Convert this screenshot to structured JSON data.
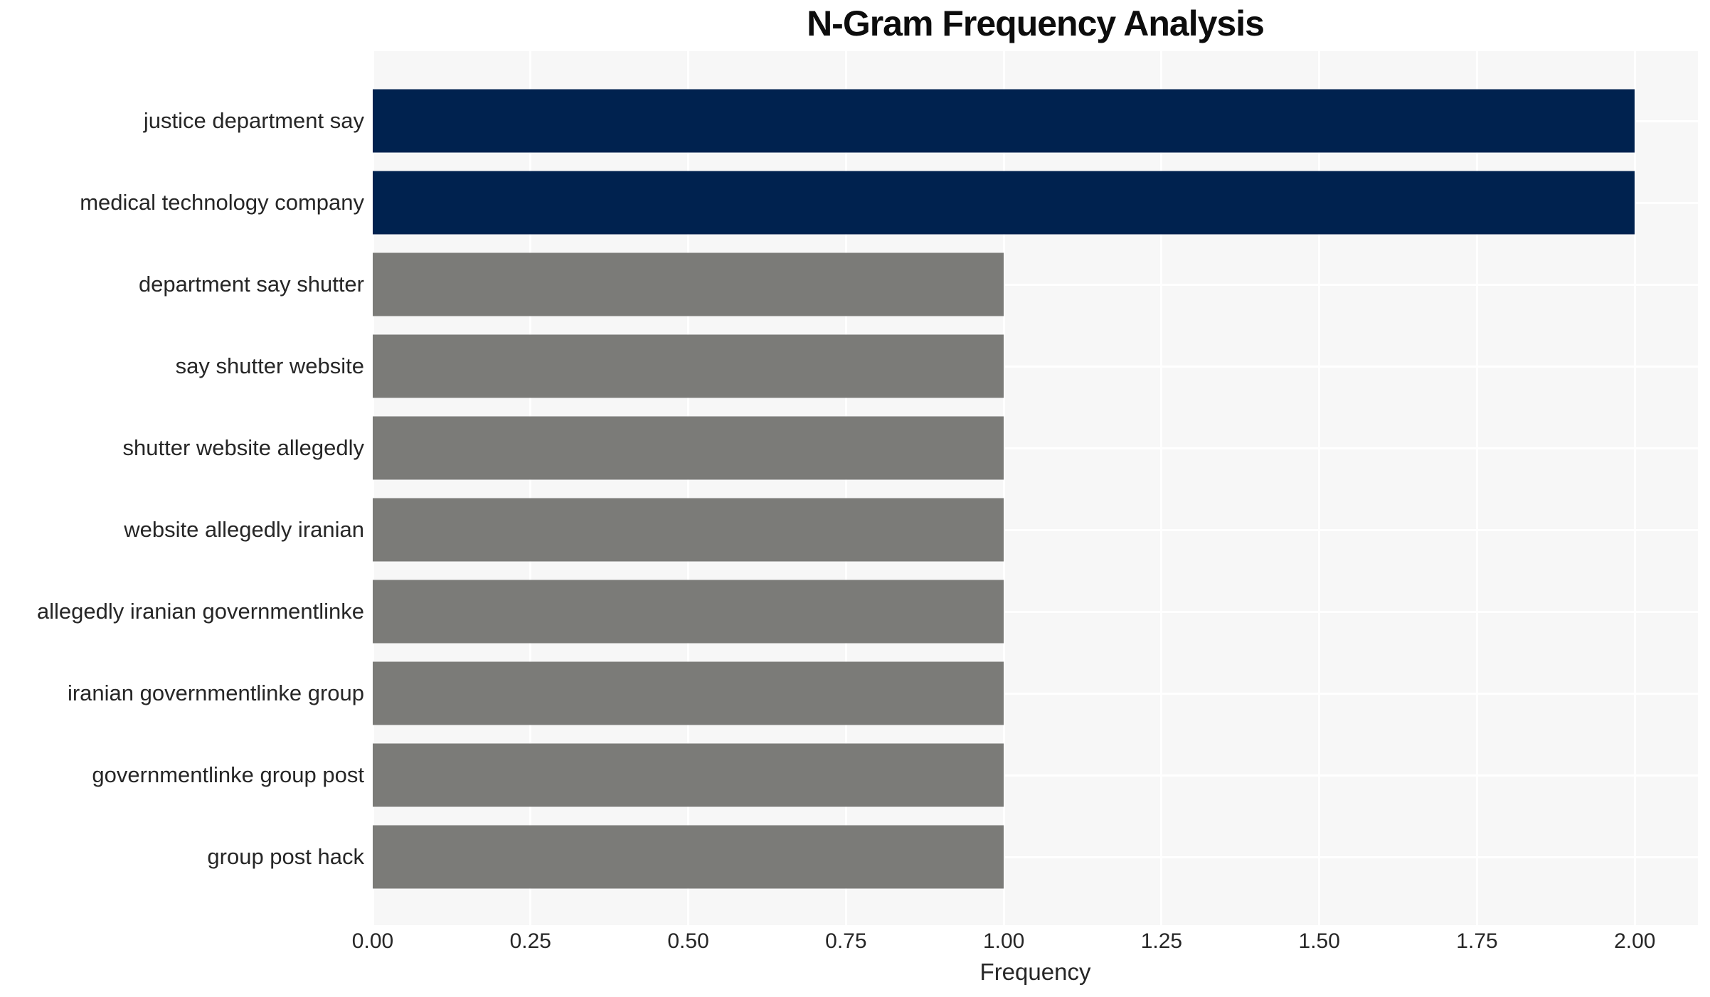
{
  "title": "N-Gram Frequency Analysis",
  "chart_data": {
    "type": "bar",
    "orientation": "horizontal",
    "title": "N-Gram Frequency Analysis",
    "xlabel": "Frequency",
    "ylabel": "",
    "categories": [
      "justice department say",
      "medical technology company",
      "department say shutter",
      "say shutter website",
      "shutter website allegedly",
      "website allegedly iranian",
      "allegedly iranian governmentlinke",
      "iranian governmentlinke group",
      "governmentlinke group post",
      "group post hack"
    ],
    "values": [
      2,
      2,
      1,
      1,
      1,
      1,
      1,
      1,
      1,
      1
    ],
    "bar_colors": [
      "#00224f",
      "#00224f",
      "#7b7b78",
      "#7b7b78",
      "#7b7b78",
      "#7b7b78",
      "#7b7b78",
      "#7b7b78",
      "#7b7b78",
      "#7b7b78"
    ],
    "xlim": [
      0,
      2.1
    ],
    "tick_values": [
      0,
      0.25,
      0.5,
      0.75,
      1.0,
      1.25,
      1.5,
      1.75,
      2.0
    ],
    "tick_labels": [
      "0.00",
      "0.25",
      "0.50",
      "0.75",
      "1.00",
      "1.25",
      "1.50",
      "1.75",
      "2.00"
    ],
    "grid": true,
    "legend": false,
    "colors": {
      "highlight_bar": "#00224f",
      "default_bar": "#7b7b78",
      "plot_background": "#f7f7f7",
      "gridline": "#ffffff",
      "text": "#262626"
    }
  }
}
